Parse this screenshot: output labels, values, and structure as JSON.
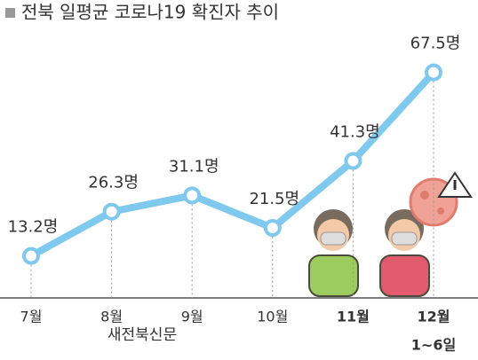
{
  "chart_data": {
    "type": "line",
    "title": "전북 일평균 코로나19 확진자 추이",
    "categories": [
      "7월",
      "8월",
      "9월",
      "10월",
      "11월",
      "12월"
    ],
    "annotations": [
      "1~6일"
    ],
    "values": [
      13.2,
      26.3,
      31.1,
      21.5,
      41.3,
      67.5
    ],
    "value_labels": [
      "13.2명",
      "26.3명",
      "31.1명",
      "21.5명",
      "41.3명",
      "67.5명"
    ],
    "color": "#7fc8ee",
    "ylim": [
      0,
      80
    ],
    "source": "새전북신문"
  }
}
